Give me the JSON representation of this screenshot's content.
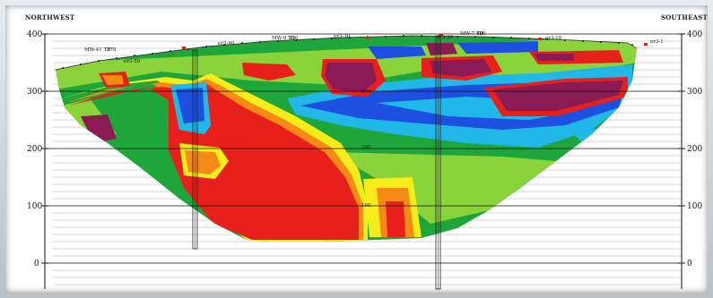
{
  "orientation": {
    "left": "NORTHWEST",
    "right": "SOUTHEAST"
  },
  "axis": {
    "ticks": [
      400,
      300,
      200,
      100,
      0
    ]
  },
  "wells": [
    {
      "label": "MW-41 TD",
      "depth_label": "278"
    },
    {
      "label": "MW-9 TD",
      "depth_label": "310"
    },
    {
      "label": "MW-7 TD",
      "depth_label": "400"
    }
  ],
  "stations": [
    "er3-40",
    "er3-30",
    "er3-20",
    "er3-10",
    "er3-1",
    "er3-50"
  ],
  "contours": [
    "300",
    "200",
    "100"
  ],
  "colors": {
    "red": "#e8201c",
    "orange": "#f58a14",
    "yellow": "#f5ec1a",
    "lightgreen": "#8bd33b",
    "green": "#1fa63a",
    "blue": "#1d4fe0",
    "cyan": "#21b8e8",
    "purple": "#8a1b55",
    "black": "#000000"
  }
}
